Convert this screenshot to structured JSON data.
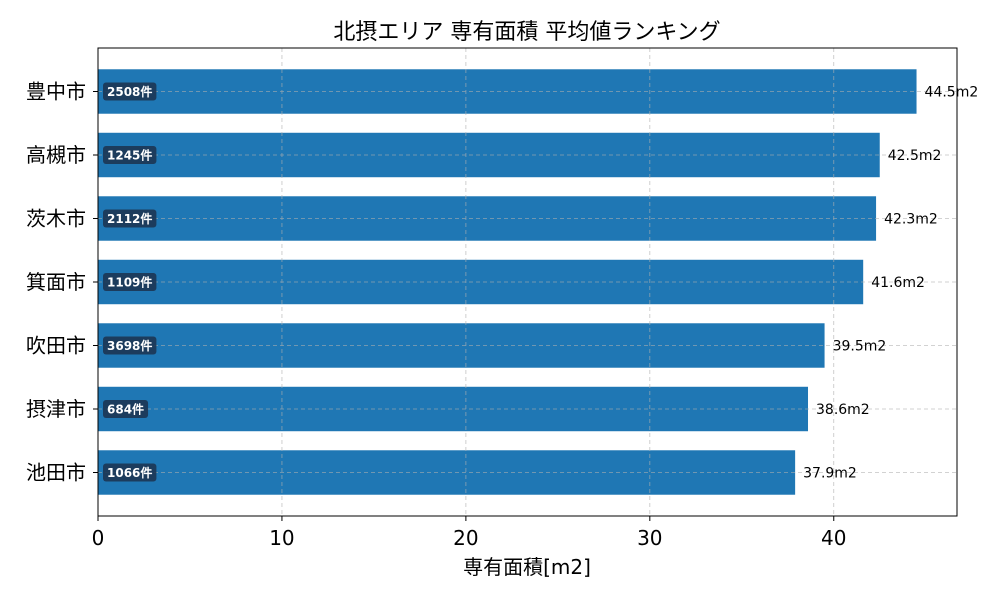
{
  "chart_data": {
    "type": "bar",
    "orientation": "horizontal",
    "title": "北摂エリア 専有面積 平均値ランキング",
    "xlabel": "専有面積[m2]",
    "ylabel": "",
    "xlim": [
      0,
      46.7
    ],
    "xticks": [
      0,
      10,
      20,
      30,
      40
    ],
    "categories": [
      "豊中市",
      "高槻市",
      "茨木市",
      "箕面市",
      "吹田市",
      "摂津市",
      "池田市"
    ],
    "values": [
      44.5,
      42.5,
      42.3,
      41.6,
      39.5,
      38.6,
      37.9
    ],
    "value_labels": [
      "44.5m2",
      "42.5m2",
      "42.3m2",
      "41.6m2",
      "39.5m2",
      "38.6m2",
      "37.9m2"
    ],
    "count_labels": [
      "2508件",
      "1245件",
      "2112件",
      "1109件",
      "3698件",
      "684件",
      "1066件"
    ],
    "grid": true,
    "legend": "none",
    "colors": {
      "bar": "#1f77b4",
      "badge": "#1c3553",
      "badge_text": "#ffffff",
      "grid": "#b0b0b0",
      "axis": "#000000"
    }
  }
}
